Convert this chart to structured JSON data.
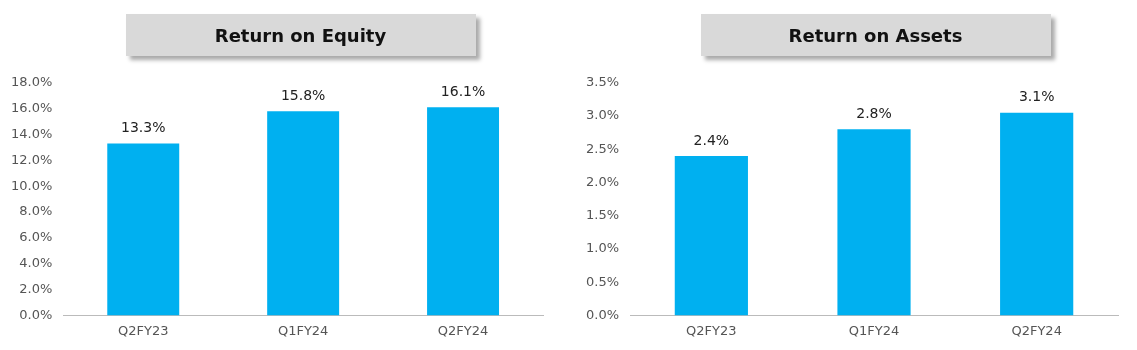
{
  "chart_data": [
    {
      "type": "bar",
      "title": "Return on Equity",
      "categories": [
        "Q2FY23",
        "Q1FY24",
        "Q2FY24"
      ],
      "values": [
        13.3,
        15.8,
        16.1
      ],
      "value_labels": [
        "13.3%",
        "15.8%",
        "16.1%"
      ],
      "color": "#00b0f0",
      "ylim": [
        0,
        18
      ],
      "yticks": [
        {
          "value": 0,
          "label": "0.0%"
        },
        {
          "value": 2,
          "label": "2.0%"
        },
        {
          "value": 4,
          "label": "4.0%"
        },
        {
          "value": 6,
          "label": "6.0%"
        },
        {
          "value": 8,
          "label": "8.0%"
        },
        {
          "value": 10,
          "label": "10.0%"
        },
        {
          "value": 12,
          "label": "12.0%"
        },
        {
          "value": 14,
          "label": "14.0%"
        },
        {
          "value": 16,
          "label": "16.0%"
        },
        {
          "value": 18,
          "label": "18.0%"
        }
      ],
      "grid": false,
      "legend": false
    },
    {
      "type": "bar",
      "title": "Return on Assets",
      "categories": [
        "Q2FY23",
        "Q1FY24",
        "Q2FY24"
      ],
      "values": [
        2.4,
        2.8,
        3.05
      ],
      "value_labels": [
        "2.4%",
        "2.8%",
        "3.1%"
      ],
      "color": "#00b0f0",
      "ylim": [
        0,
        3.5
      ],
      "yticks": [
        {
          "value": 0,
          "label": "0.0%"
        },
        {
          "value": 0.5,
          "label": "0.5%"
        },
        {
          "value": 1,
          "label": "1.0%"
        },
        {
          "value": 1.5,
          "label": "1.5%"
        },
        {
          "value": 2,
          "label": "2.0%"
        },
        {
          "value": 2.5,
          "label": "2.5%"
        },
        {
          "value": 3,
          "label": "3.0%"
        },
        {
          "value": 3.5,
          "label": "3.5%"
        }
      ],
      "grid": false,
      "legend": false
    }
  ]
}
